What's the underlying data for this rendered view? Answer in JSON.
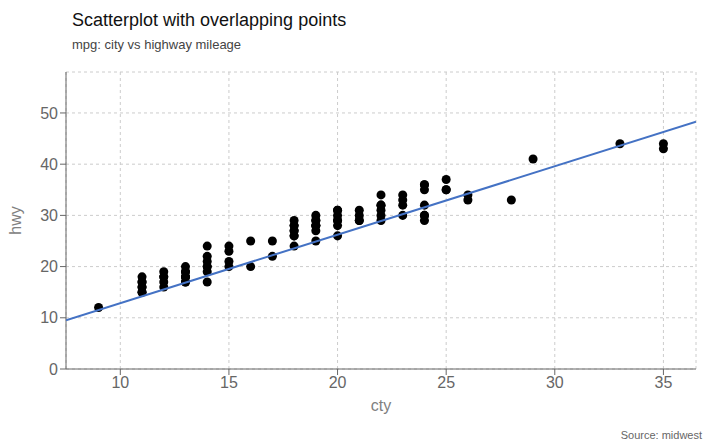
{
  "chart_data": {
    "type": "scatter",
    "title": "Scatterplot with overlapping points",
    "subtitle": "mpg: city vs highway mileage",
    "xlabel": "cty",
    "ylabel": "hwy",
    "source": "Source: midwest",
    "xlim": [
      7.5,
      36.5
    ],
    "ylim": [
      0,
      58
    ],
    "xticks": [
      10,
      15,
      20,
      25,
      30,
      35
    ],
    "yticks": [
      0,
      10,
      20,
      30,
      40,
      50
    ],
    "grid": true,
    "series": [
      {
        "type": "scatter",
        "color": "#000000",
        "x": [
          9,
          11,
          11,
          11,
          11,
          11,
          11,
          11,
          12,
          12,
          12,
          12,
          12,
          13,
          13,
          13,
          13,
          13,
          13,
          13,
          13,
          14,
          14,
          14,
          14,
          14,
          14,
          14,
          15,
          15,
          15,
          15,
          16,
          16,
          17,
          17,
          18,
          18,
          18,
          18,
          18,
          18,
          18,
          18,
          19,
          19,
          19,
          19,
          19,
          19,
          19,
          19,
          20,
          20,
          20,
          20,
          20,
          20,
          20,
          21,
          21,
          21,
          21,
          22,
          22,
          22,
          22,
          22,
          22,
          23,
          23,
          23,
          23,
          24,
          24,
          24,
          24,
          24,
          24,
          24,
          25,
          25,
          25,
          26,
          26,
          28,
          29,
          33,
          35,
          35
        ],
        "values": [
          12,
          15,
          15,
          16,
          16,
          17,
          17,
          18,
          16,
          17,
          18,
          18,
          19,
          17,
          17,
          18,
          18,
          18,
          19,
          19,
          20,
          17,
          19,
          20,
          20,
          21,
          22,
          24,
          20,
          21,
          23,
          24,
          20,
          25,
          22,
          25,
          24,
          26,
          26,
          27,
          27,
          28,
          28,
          29,
          25,
          27,
          28,
          28,
          28,
          29,
          29,
          30,
          26,
          28,
          29,
          29,
          30,
          31,
          31,
          29,
          29,
          30,
          31,
          29,
          30,
          31,
          32,
          32,
          34,
          30,
          32,
          33,
          34,
          29,
          30,
          30,
          32,
          35,
          36,
          36,
          35,
          35,
          37,
          33,
          34,
          33,
          41,
          44,
          43,
          44
        ]
      },
      {
        "type": "line",
        "color": "#4472C4",
        "x": [
          7.5,
          36.5
        ],
        "values": [
          9.51125,
          48.28715
        ]
      }
    ]
  }
}
